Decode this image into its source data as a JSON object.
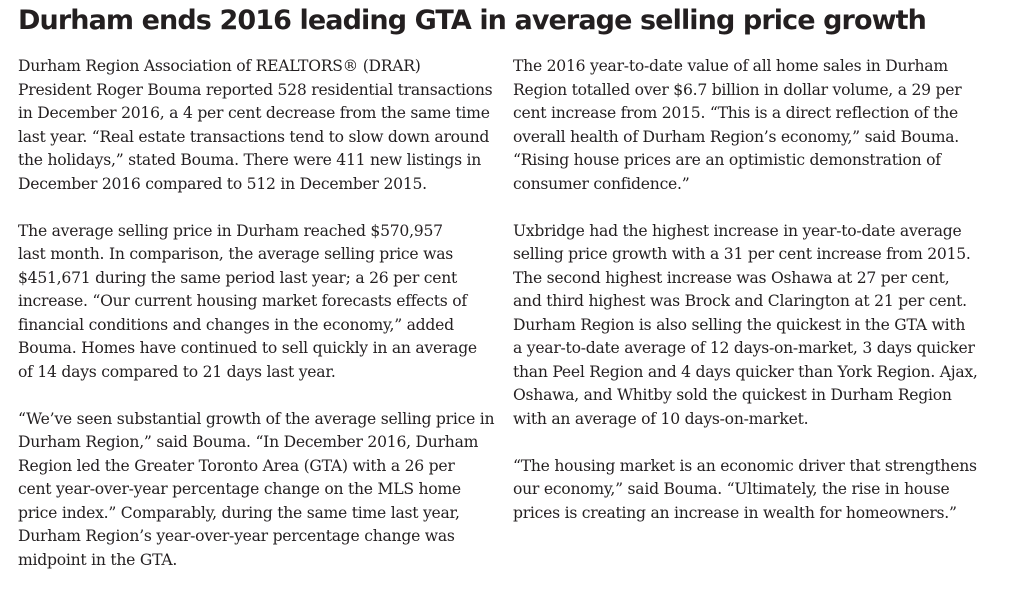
{
  "article": {
    "headline": "Durham ends 2016 leading GTA in average selling price growth",
    "left_column": [
      [
        "Durham Region Association of REALTORS® (DRAR)",
        "President Roger Bouma reported 528 residential transactions",
        "in December 2016, a 4 per cent decrease from the same time",
        "last year. “Real estate transactions tend to slow down around",
        "the holidays,” stated Bouma. There were 411 new listings in",
        "December 2016 compared to 512 in December 2015."
      ],
      [
        "The average selling price in Durham reached $570,957",
        "last month. In comparison, the average selling price was",
        "$451,671 during the same period last year; a 26 per cent",
        "increase. “Our current housing market forecasts effects of",
        "financial conditions and changes in the economy,” added",
        "Bouma. Homes have continued to sell quickly in an average",
        "of 14 days compared to 21 days last year."
      ],
      [
        "“We’ve seen substantial growth of the average selling price in",
        "Durham Region,” said Bouma. “In December 2016, Durham",
        "Region led the Greater Toronto Area (GTA) with a 26 per",
        "cent year-over-year percentage change on the MLS home",
        "price index.” Comparably, during the same time last year,",
        "Durham Region’s year-over-year percentage change was",
        "midpoint in the GTA."
      ]
    ],
    "right_column": [
      [
        "The 2016 year-to-date value of all home sales in Durham",
        "Region totalled over $6.7 billion in dollar volume, a 29 per",
        "cent increase from 2015. “This is a direct reflection of the",
        "overall health of Durham Region’s economy,” said Bouma.",
        "“Rising house prices are an optimistic demonstration of",
        "consumer confidence.”"
      ],
      [
        "Uxbridge had the highest increase in year-to-date average",
        "selling price growth with a 31 per cent increase from 2015.",
        "The second highest increase was Oshawa at 27 per cent,",
        "and third highest was Brock and Clarington at 21 per cent.",
        "Durham Region is also selling the quickest in the GTA with",
        "a year-to-date average of 12 days-on-market, 3 days quicker",
        "than Peel Region and 4 days quicker than York Region. Ajax,",
        "Oshawa, and Whitby sold the quickest in Durham Region",
        "with an average of 10 days-on-market."
      ],
      [
        "“The housing market is an economic driver that strengthens",
        "our economy,” said Bouma. “Ultimately, the rise in house",
        "prices is creating an increase in wealth for homeowners.”"
      ]
    ]
  }
}
